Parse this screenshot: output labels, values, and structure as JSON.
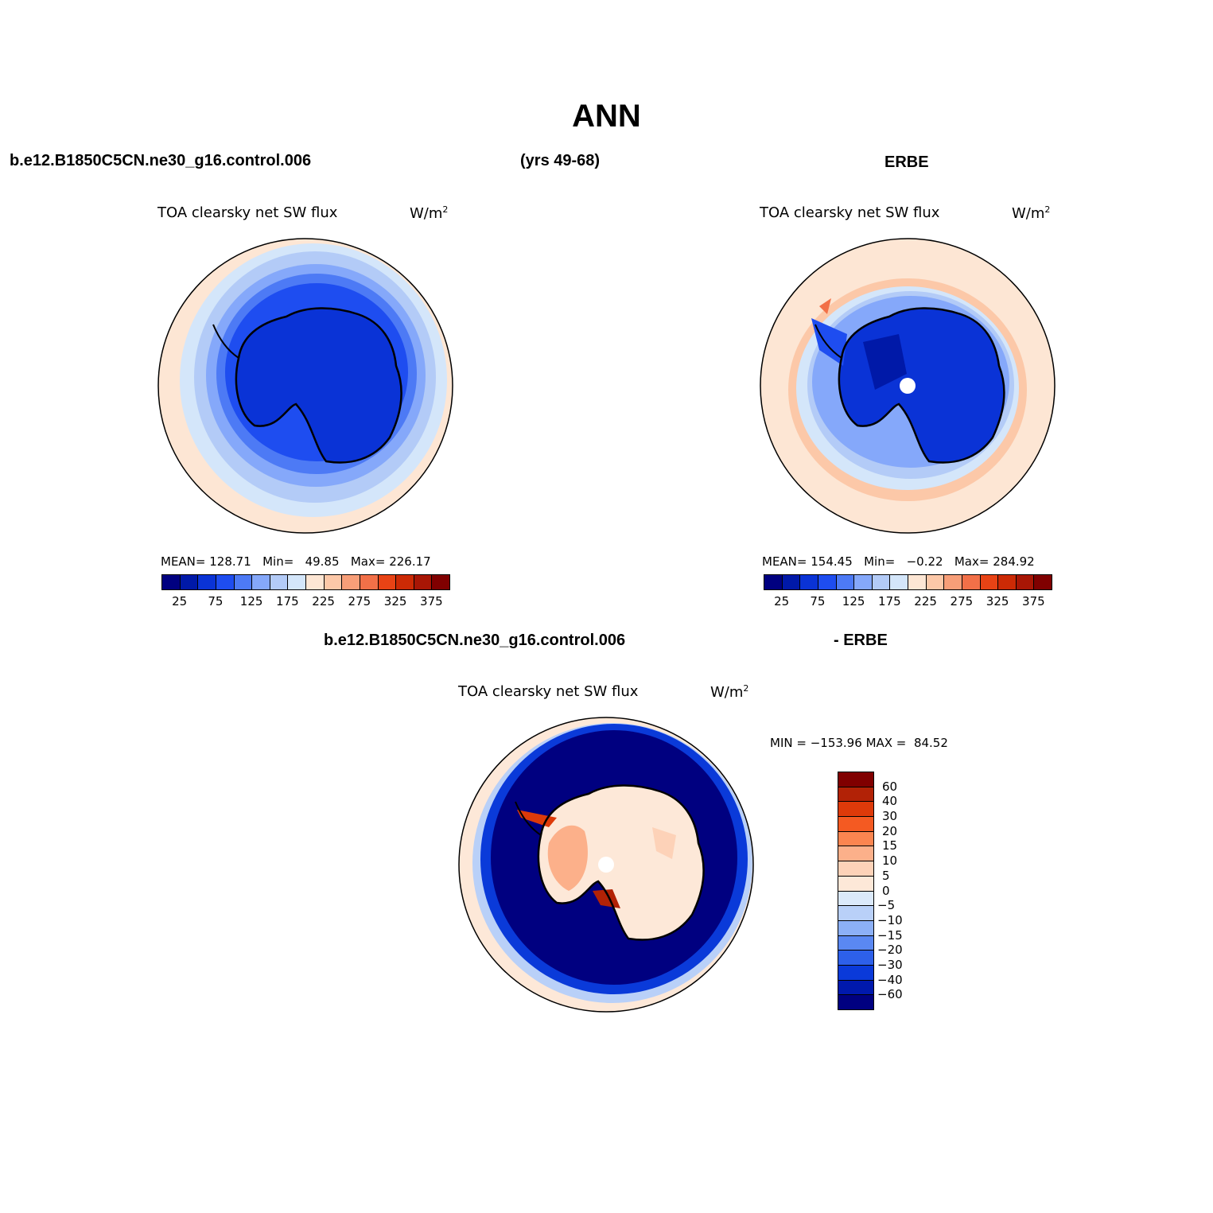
{
  "title": "ANN",
  "header": {
    "case_name": "b.e12.B1850C5CN.ne30_g16.control.006",
    "years": "(yrs 49-68)",
    "obs_name": "ERBE",
    "diff_case": "b.e12.B1850C5CN.ne30_g16.control.006",
    "diff_obs": "- ERBE"
  },
  "panels": [
    {
      "variable": "TOA clearsky net SW flux",
      "units": "W/m",
      "units_exp": "2",
      "stats": {
        "mean_label": "MEAN=",
        "mean": "128.71",
        "min_label": "Min=",
        "min": "49.85",
        "max_label": "Max=",
        "max": "226.17"
      },
      "polar_hole": false
    },
    {
      "variable": "TOA clearsky net SW flux",
      "units": "W/m",
      "units_exp": "2",
      "stats": {
        "mean_label": "MEAN=",
        "mean": "154.45",
        "min_label": "Min=",
        "min": "−0.22",
        "max_label": "Max=",
        "max": "284.92"
      },
      "polar_hole": true
    },
    {
      "variable": "TOA clearsky net SW flux",
      "units": "W/m",
      "units_exp": "2",
      "stats": {
        "min_label": "MIN =",
        "min": "−153.96",
        "max_label": "MAX =",
        "max": "84.52"
      },
      "polar_hole": true
    }
  ],
  "abs_colorbar": {
    "colors": [
      "#000080",
      "#0019a8",
      "#0a33d6",
      "#1e4df0",
      "#4d7af5",
      "#85a8fa",
      "#b3cbf7",
      "#d4e6fa",
      "#fde6d4",
      "#fcc8a8",
      "#f79e78",
      "#f27048",
      "#e84315",
      "#cc2a05",
      "#a81605",
      "#800000"
    ],
    "tick_labels": [
      "25",
      "75",
      "125",
      "175",
      "225",
      "275",
      "325",
      "375"
    ]
  },
  "diff_colorbar": {
    "colors": [
      "#800000",
      "#b22206",
      "#dd3a0a",
      "#f45a22",
      "#fb8550",
      "#fcb08a",
      "#fdd2b8",
      "#fde8d8",
      "#dbe9fa",
      "#b9d0f8",
      "#8cb0f7",
      "#5a88f2",
      "#2d60ea",
      "#0a3ad9",
      "#0019ad",
      "#000080"
    ],
    "tick_labels": [
      "60",
      "40",
      "30",
      "20",
      "15",
      "10",
      "5",
      "0",
      "−5",
      "−10",
      "−15",
      "−20",
      "−30",
      "−40",
      "−60"
    ]
  }
}
